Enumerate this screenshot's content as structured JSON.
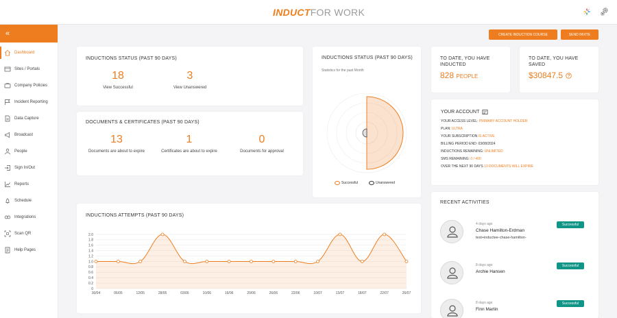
{
  "brand": {
    "logo_part1": "INDUCT",
    "logo_part2": "FOR WORK"
  },
  "sidebar": {
    "collapse": "«",
    "items": [
      {
        "label": "Dashboard",
        "icon": "home-icon"
      },
      {
        "label": "Sites / Portals",
        "icon": "sites-icon"
      },
      {
        "label": "Company Policies",
        "icon": "policies-icon"
      },
      {
        "label": "Incident Reporting",
        "icon": "incident-icon"
      },
      {
        "label": "Data Capture",
        "icon": "data-capture-icon"
      },
      {
        "label": "Broadcast",
        "icon": "broadcast-icon"
      },
      {
        "label": "People",
        "icon": "people-icon"
      },
      {
        "label": "Sign In/Out",
        "icon": "sign-in-out-icon"
      },
      {
        "label": "Reports",
        "icon": "reports-icon"
      },
      {
        "label": "Schedule",
        "icon": "schedule-icon"
      },
      {
        "label": "Integrations",
        "icon": "integrations-icon"
      },
      {
        "label": "Scan QR",
        "icon": "qr-icon"
      },
      {
        "label": "Help Pages",
        "icon": "help-icon"
      }
    ]
  },
  "actions": {
    "create_course": "CREATE INDUCTION COURSE",
    "send_invite": "SEND INVITE"
  },
  "inductions_status": {
    "title": "INDUCTIONS STATUS (PAST 90 DAYS)",
    "successful": "18",
    "successful_label": "View Successful",
    "unanswered": "3",
    "unanswered_label": "View Unanswered"
  },
  "documents": {
    "title": "DOCUMENTS & CERTIFICATES (PAST 90 DAYS)",
    "docs_expire": "13",
    "docs_expire_label": "Documents are about to expire",
    "certs_expire": "1",
    "certs_expire_label": "Certificates are about to expire",
    "approval": "0",
    "approval_label": "Documents for approval"
  },
  "polar": {
    "title": "INDUCTIONS STATUS (PAST 90 DAYS)",
    "subtitle": "Statistics for the past Month",
    "legend_successful": "Successful",
    "legend_unanswered": "Unanswered",
    "color_successful": "#ee7d1f",
    "color_unanswered": "#333333"
  },
  "inducted": {
    "title": "TO DATE, YOU HAVE INDUCTED",
    "value": "828",
    "unit": "PEOPLE"
  },
  "saved": {
    "title": "TO DATE, YOU HAVE SAVED",
    "value": "$30847.5"
  },
  "account": {
    "title": "YOUR ACCOUNT",
    "access_label": "YOUR ACCESS LEVEL:",
    "access_value": "PRIMARY ACCOUNT HOLDER",
    "plan_label": "PLAN:",
    "plan_value": "ULTRA",
    "subscription_label": "YOUR SUBSCRIPTION",
    "subscription_value": "IS ACTIVE",
    "billing_label": "BILLING PERIOD END: 03/08/2024",
    "remaining_label": "INDUCTIONS REMAINING:",
    "remaining_value": "UNLIMITED",
    "sms_label": "SMS REMAINING:",
    "sms_value": "0 / 400",
    "expire_label": "OVER THE NEXT 90 DAYS",
    "expire_value": "13 DOCUMENTS WILL EXPIRE"
  },
  "activities": {
    "title": "RECENT ACTIVITIES",
    "items": [
      {
        "time": "4 days ago",
        "name": "Chase Hamilton-Erdman",
        "sub": "test+inductee-chase-hamilton-",
        "status": "Successful"
      },
      {
        "time": "8 days ago",
        "name": "Archie Hansen",
        "sub": "",
        "status": "Successful"
      },
      {
        "time": "8 days ago",
        "name": "Finn Martin",
        "sub": "",
        "status": "Successful"
      }
    ]
  },
  "attempts": {
    "title": "INDUCTIONS ATTEMPTS (PAST 90 DAYS)"
  },
  "chart_data": {
    "type": "line",
    "x": [
      "30/04",
      "06/05",
      "12/05",
      "28/05",
      "03/06",
      "10/06",
      "16/06",
      "20/06",
      "26/06",
      "22/06",
      "10/07",
      "13/07",
      "18/07",
      "22/07",
      "26/07"
    ],
    "values": [
      1.0,
      1.0,
      1.0,
      2.0,
      1.0,
      1.0,
      1.0,
      1.0,
      1.0,
      1.0,
      1.0,
      2.0,
      1.0,
      2.0,
      1.0
    ],
    "yticks": [
      "0",
      "0.2",
      "0.4",
      "0.6",
      "0.8",
      "1.0",
      "1.2",
      "1.4",
      "1.6",
      "1.8",
      "2.0"
    ],
    "ylim": [
      0,
      2.0
    ],
    "grid": true,
    "color": "#ee7d1f"
  }
}
